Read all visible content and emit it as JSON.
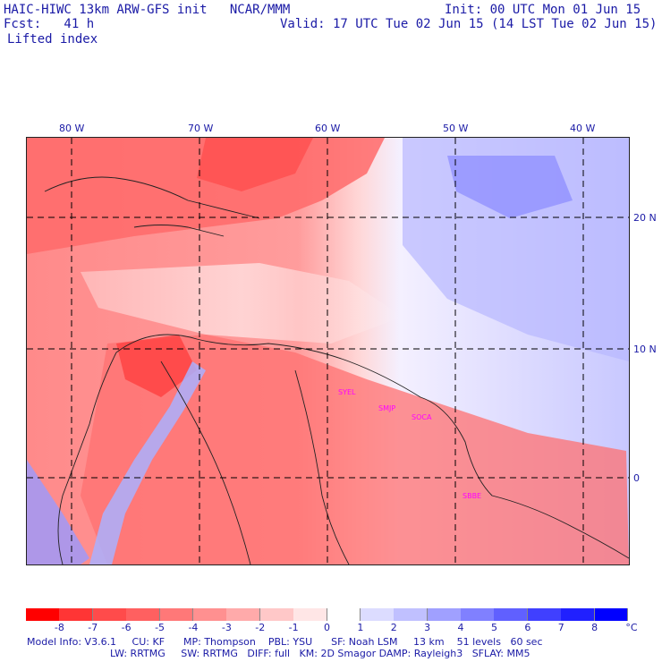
{
  "header": {
    "model_line": "HAIC-HIWC 13km ARW-GFS init   NCAR/MMM",
    "fcst_line": "Fcst:   41 h",
    "init_line": "Init: 00 UTC Mon 01 Jun 15",
    "valid_line": "Valid: 17 UTC Tue 02 Jun 15 (14 LST Tue 02 Jun 15)",
    "field_name": "Lifted index"
  },
  "map": {
    "lon_labels": [
      "80 W",
      "70 W",
      "60 W",
      "50 W",
      "40 W"
    ],
    "lat_labels": [
      "20 N",
      "10 N",
      "0"
    ],
    "stations": [
      "SYEL",
      "SMJP",
      "SOCA",
      "SBBE"
    ]
  },
  "colorbar": {
    "ticks": [
      "-8",
      "-7",
      "-6",
      "-5",
      "-4",
      "-3",
      "-2",
      "-1",
      "0",
      "1",
      "2",
      "3",
      "4",
      "5",
      "6",
      "7",
      "8"
    ],
    "unit": "°C",
    "colors": [
      "#ff0000",
      "#ff3535",
      "#ff4b4b",
      "#ff6060",
      "#ff7878",
      "#ff9090",
      "#ffaaaa",
      "#ffc8c8",
      "#ffe6e6",
      "#ffffff",
      "#dcdcff",
      "#c0c0ff",
      "#a0a0ff",
      "#8080ff",
      "#6060ff",
      "#4040ff",
      "#2020ff",
      "#0000ff"
    ]
  },
  "footer": {
    "line1": "Model Info: V3.6.1     CU: KF      MP: Thompson    PBL: YSU      SF: Noah LSM     13 km    51 levels   60 sec",
    "line2": "LW: RRTMG     SW: RRTMG   DIFF: full   KM: 2D Smagor DAMP: Rayleigh3   SFLAY: MM5"
  }
}
